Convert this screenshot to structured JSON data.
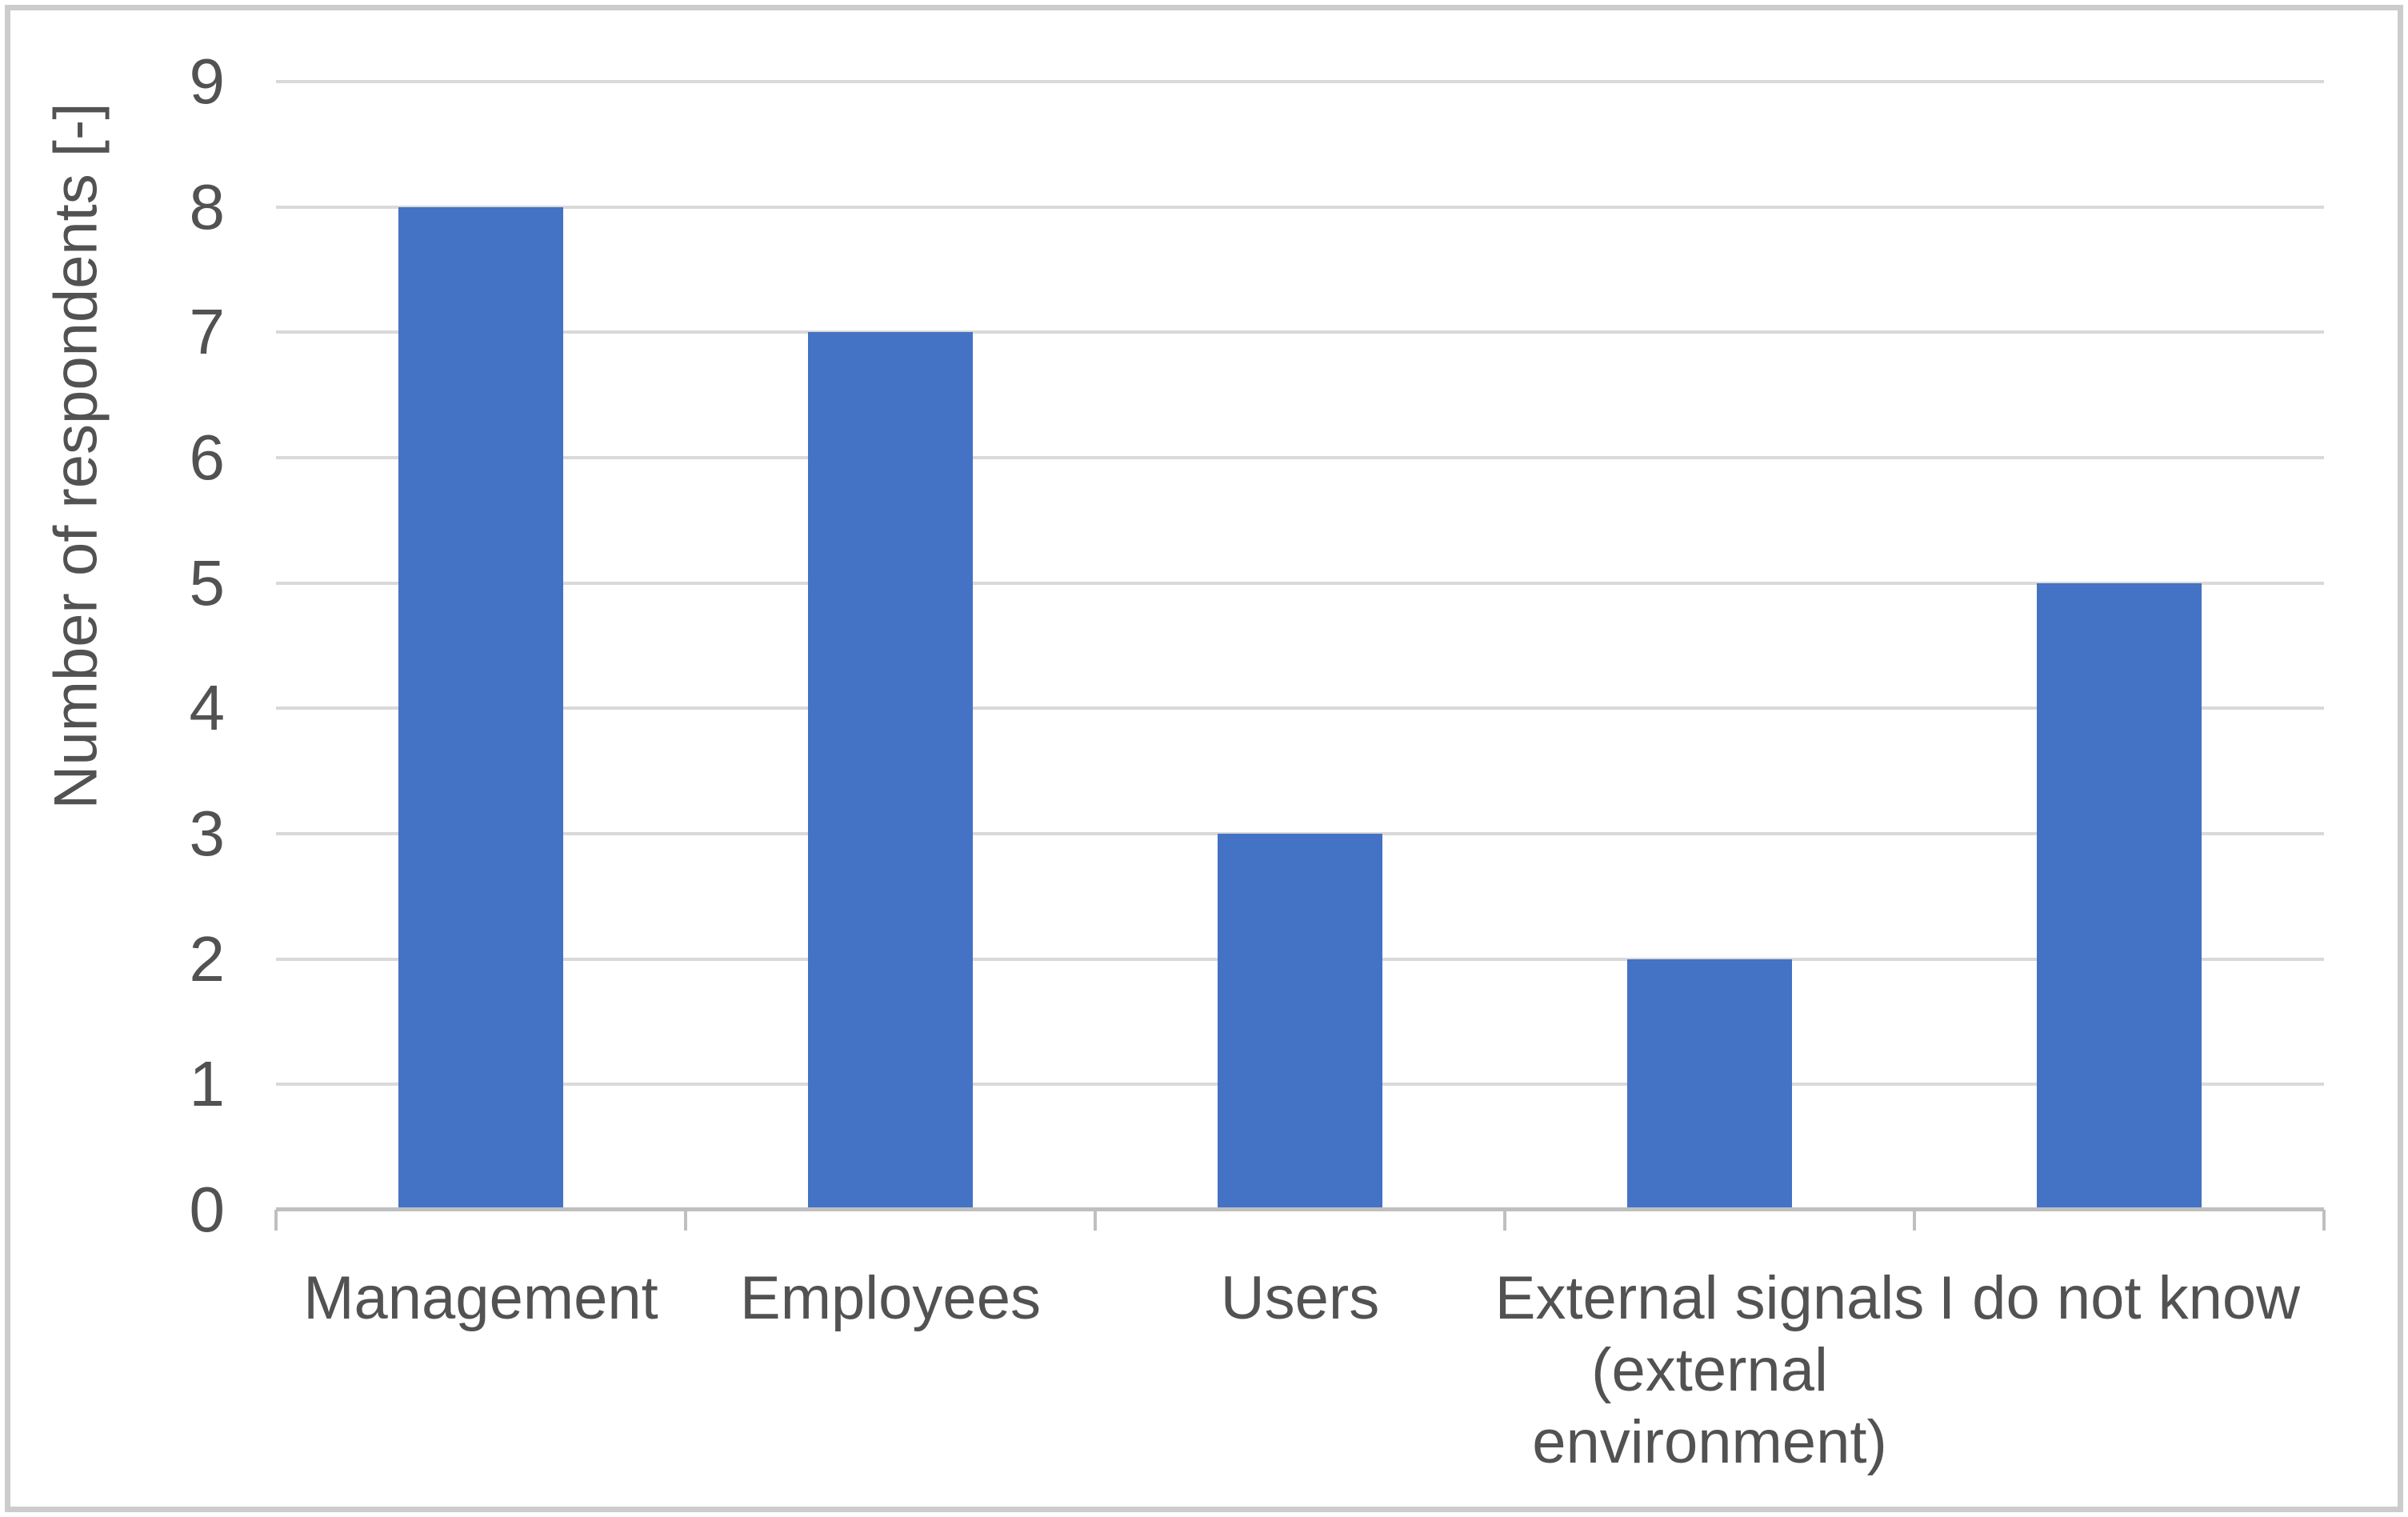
{
  "chart_data": {
    "type": "bar",
    "title": "",
    "xlabel": "",
    "ylabel": "Number of respondents [-]",
    "categories": [
      "Management",
      "Employees",
      "Users",
      "External signals (external environment)",
      "I do not know"
    ],
    "categories_wrapped": [
      [
        "Management"
      ],
      [
        "Employees"
      ],
      [
        "Users"
      ],
      [
        "External signals",
        "(external",
        "environment)"
      ],
      [
        "I do not know"
      ]
    ],
    "values": [
      8,
      7,
      3,
      2,
      5
    ],
    "ylim": [
      0,
      9
    ],
    "yticks": [
      0,
      1,
      2,
      3,
      4,
      5,
      6,
      7,
      8,
      9
    ],
    "grid": "horizontal",
    "legend": "none",
    "colors": {
      "bar": "#4472C4",
      "gridline": "#D9D9D9",
      "axis": "#BFBFBF",
      "text": "#525252",
      "frame_border": "#CCCCCC",
      "background": "#FFFFFF"
    }
  }
}
